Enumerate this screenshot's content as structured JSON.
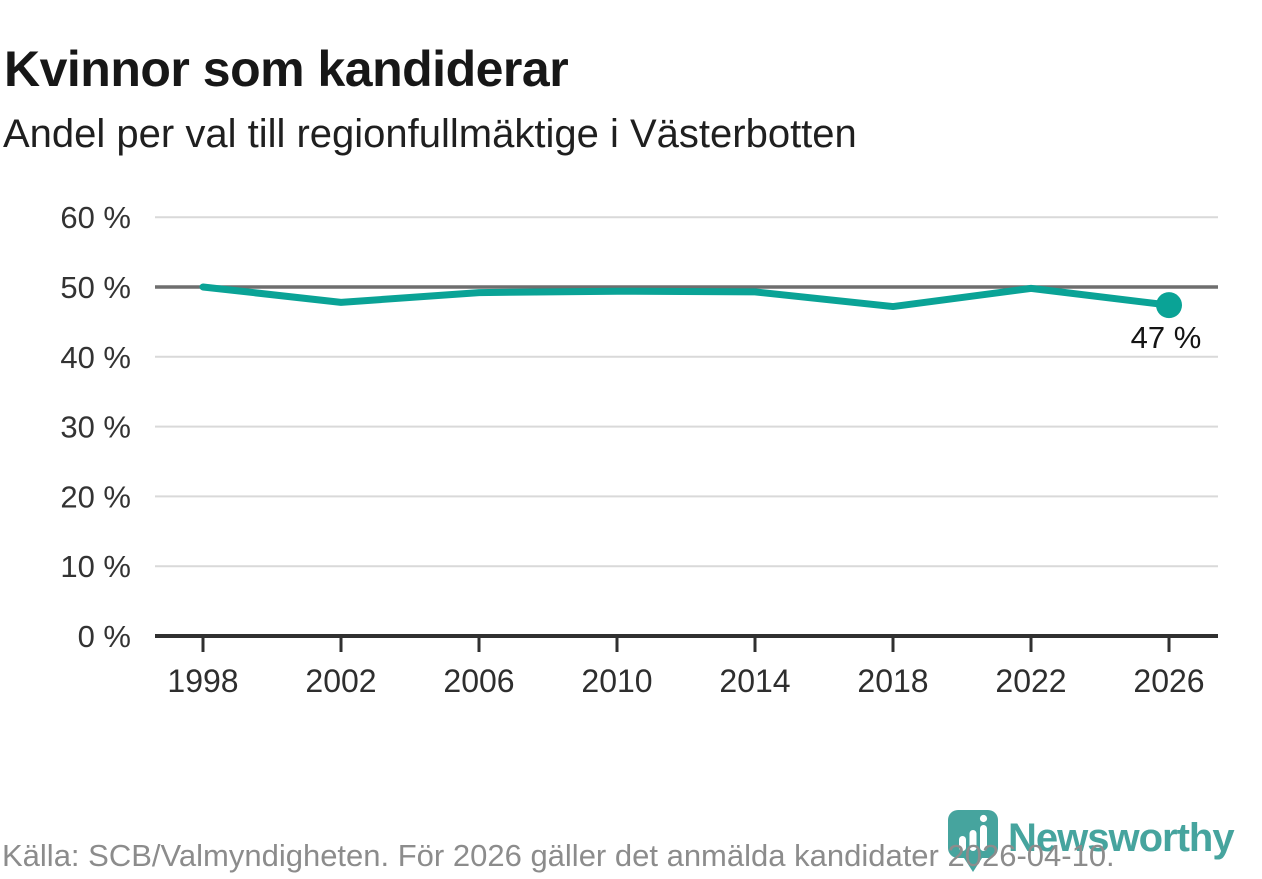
{
  "header": {
    "title": "Kvinnor som kandiderar",
    "subtitle": "Andel per val till regionfullmäktige i Västerbotten"
  },
  "chart_data": {
    "type": "line",
    "title": "Kvinnor som kandiderar",
    "subtitle": "Andel per val till regionfullmäktige i Västerbotten",
    "categories": [
      "1998",
      "2002",
      "2006",
      "2010",
      "2014",
      "2018",
      "2022",
      "2026"
    ],
    "values": [
      50,
      47.8,
      49.2,
      49.4,
      49.3,
      47.2,
      49.8,
      47.4
    ],
    "unit": "%",
    "ylim": [
      0,
      60
    ],
    "yticks": [
      0,
      10,
      20,
      30,
      40,
      50,
      60
    ],
    "ytick_labels": [
      "0 %",
      "10 %",
      "20 %",
      "30 %",
      "40 %",
      "50 %",
      "60 %"
    ],
    "grid": "horizontal",
    "legend": "none",
    "reference_line": 50,
    "line_color": "#0aa396",
    "end_label": "47 %",
    "end_marker": true
  },
  "footer": {
    "source": "Källa: SCB/Valmyndigheten. För 2026 gäller det anmälda kandidater 2026-04-10."
  },
  "logo": {
    "text": "Newsworthy",
    "color": "#46a49e",
    "icon": "newsworthy-pin-bar-chart-icon"
  }
}
